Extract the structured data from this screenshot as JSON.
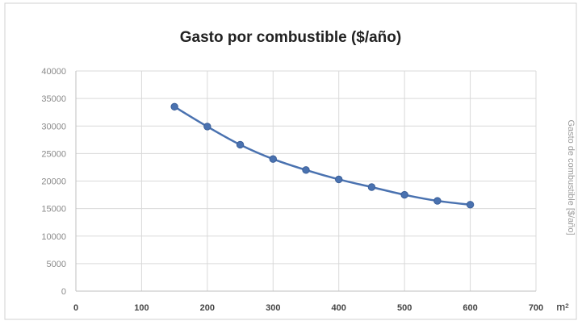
{
  "chart_data": {
    "type": "scatter",
    "title": "Gasto por combustible ($/año)",
    "xlabel": "m²",
    "ylabel": "Gasto de combustible [$/año]",
    "x": [
      150,
      200,
      250,
      300,
      350,
      400,
      450,
      500,
      550,
      600
    ],
    "series": [
      {
        "values": [
          33500,
          29900,
          26600,
          24000,
          22000,
          20300,
          18900,
          17500,
          16400,
          15700
        ]
      }
    ],
    "xlim": [
      0,
      700
    ],
    "ylim": [
      0,
      40000
    ],
    "x_ticks": [
      "0",
      "100",
      "200",
      "300",
      "400",
      "500",
      "600",
      "700"
    ],
    "y_ticks": [
      "0",
      "5000",
      "10000",
      "15000",
      "20000",
      "25000",
      "30000",
      "35000",
      "40000"
    ],
    "grid": true,
    "legend": "none",
    "line_style": "smoothed line with markers",
    "colors": {
      "series": "#4a72b0",
      "grid": "#d9d9d9",
      "frame": "#d0d0d0"
    }
  }
}
